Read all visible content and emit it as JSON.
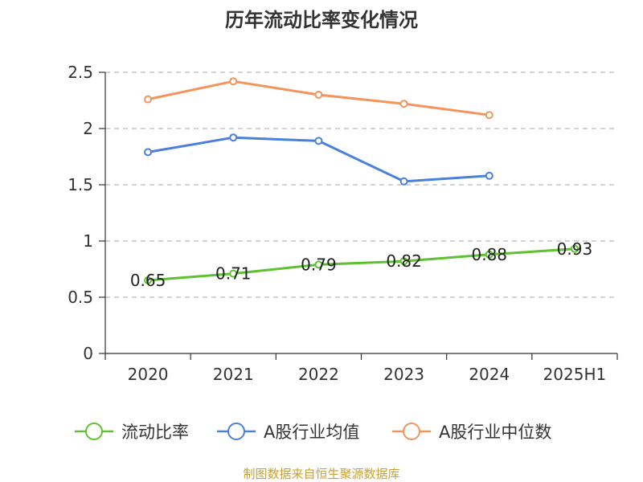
{
  "chart_data": {
    "type": "line",
    "title": "历年流动比率变化情况",
    "categories": [
      "2020",
      "2021",
      "2022",
      "2023",
      "2024",
      "2025H1"
    ],
    "ylim": [
      0,
      2.5
    ],
    "yticks": [
      0,
      0.5,
      1,
      1.5,
      2,
      2.5
    ],
    "ytick_labels": [
      "0",
      "0.5",
      "1",
      "1.5",
      "2",
      "2.5"
    ],
    "grid": true,
    "legend_position": "bottom",
    "series": [
      {
        "name": "流动比率",
        "color": "#5ec12f",
        "values": [
          0.65,
          0.71,
          0.79,
          0.82,
          0.88,
          0.93
        ],
        "labels": [
          "0.65",
          "0.71",
          "0.79",
          "0.82",
          "0.88",
          "0.93"
        ]
      },
      {
        "name": "A股行业均值",
        "color": "#4a80dc",
        "values": [
          1.79,
          1.92,
          1.89,
          1.53,
          1.58,
          null
        ]
      },
      {
        "name": "A股行业中位数",
        "color": "#f5935a",
        "values": [
          2.26,
          2.42,
          2.3,
          2.22,
          2.12,
          null
        ]
      }
    ],
    "source": "制图数据来自恒生聚源数据库"
  }
}
